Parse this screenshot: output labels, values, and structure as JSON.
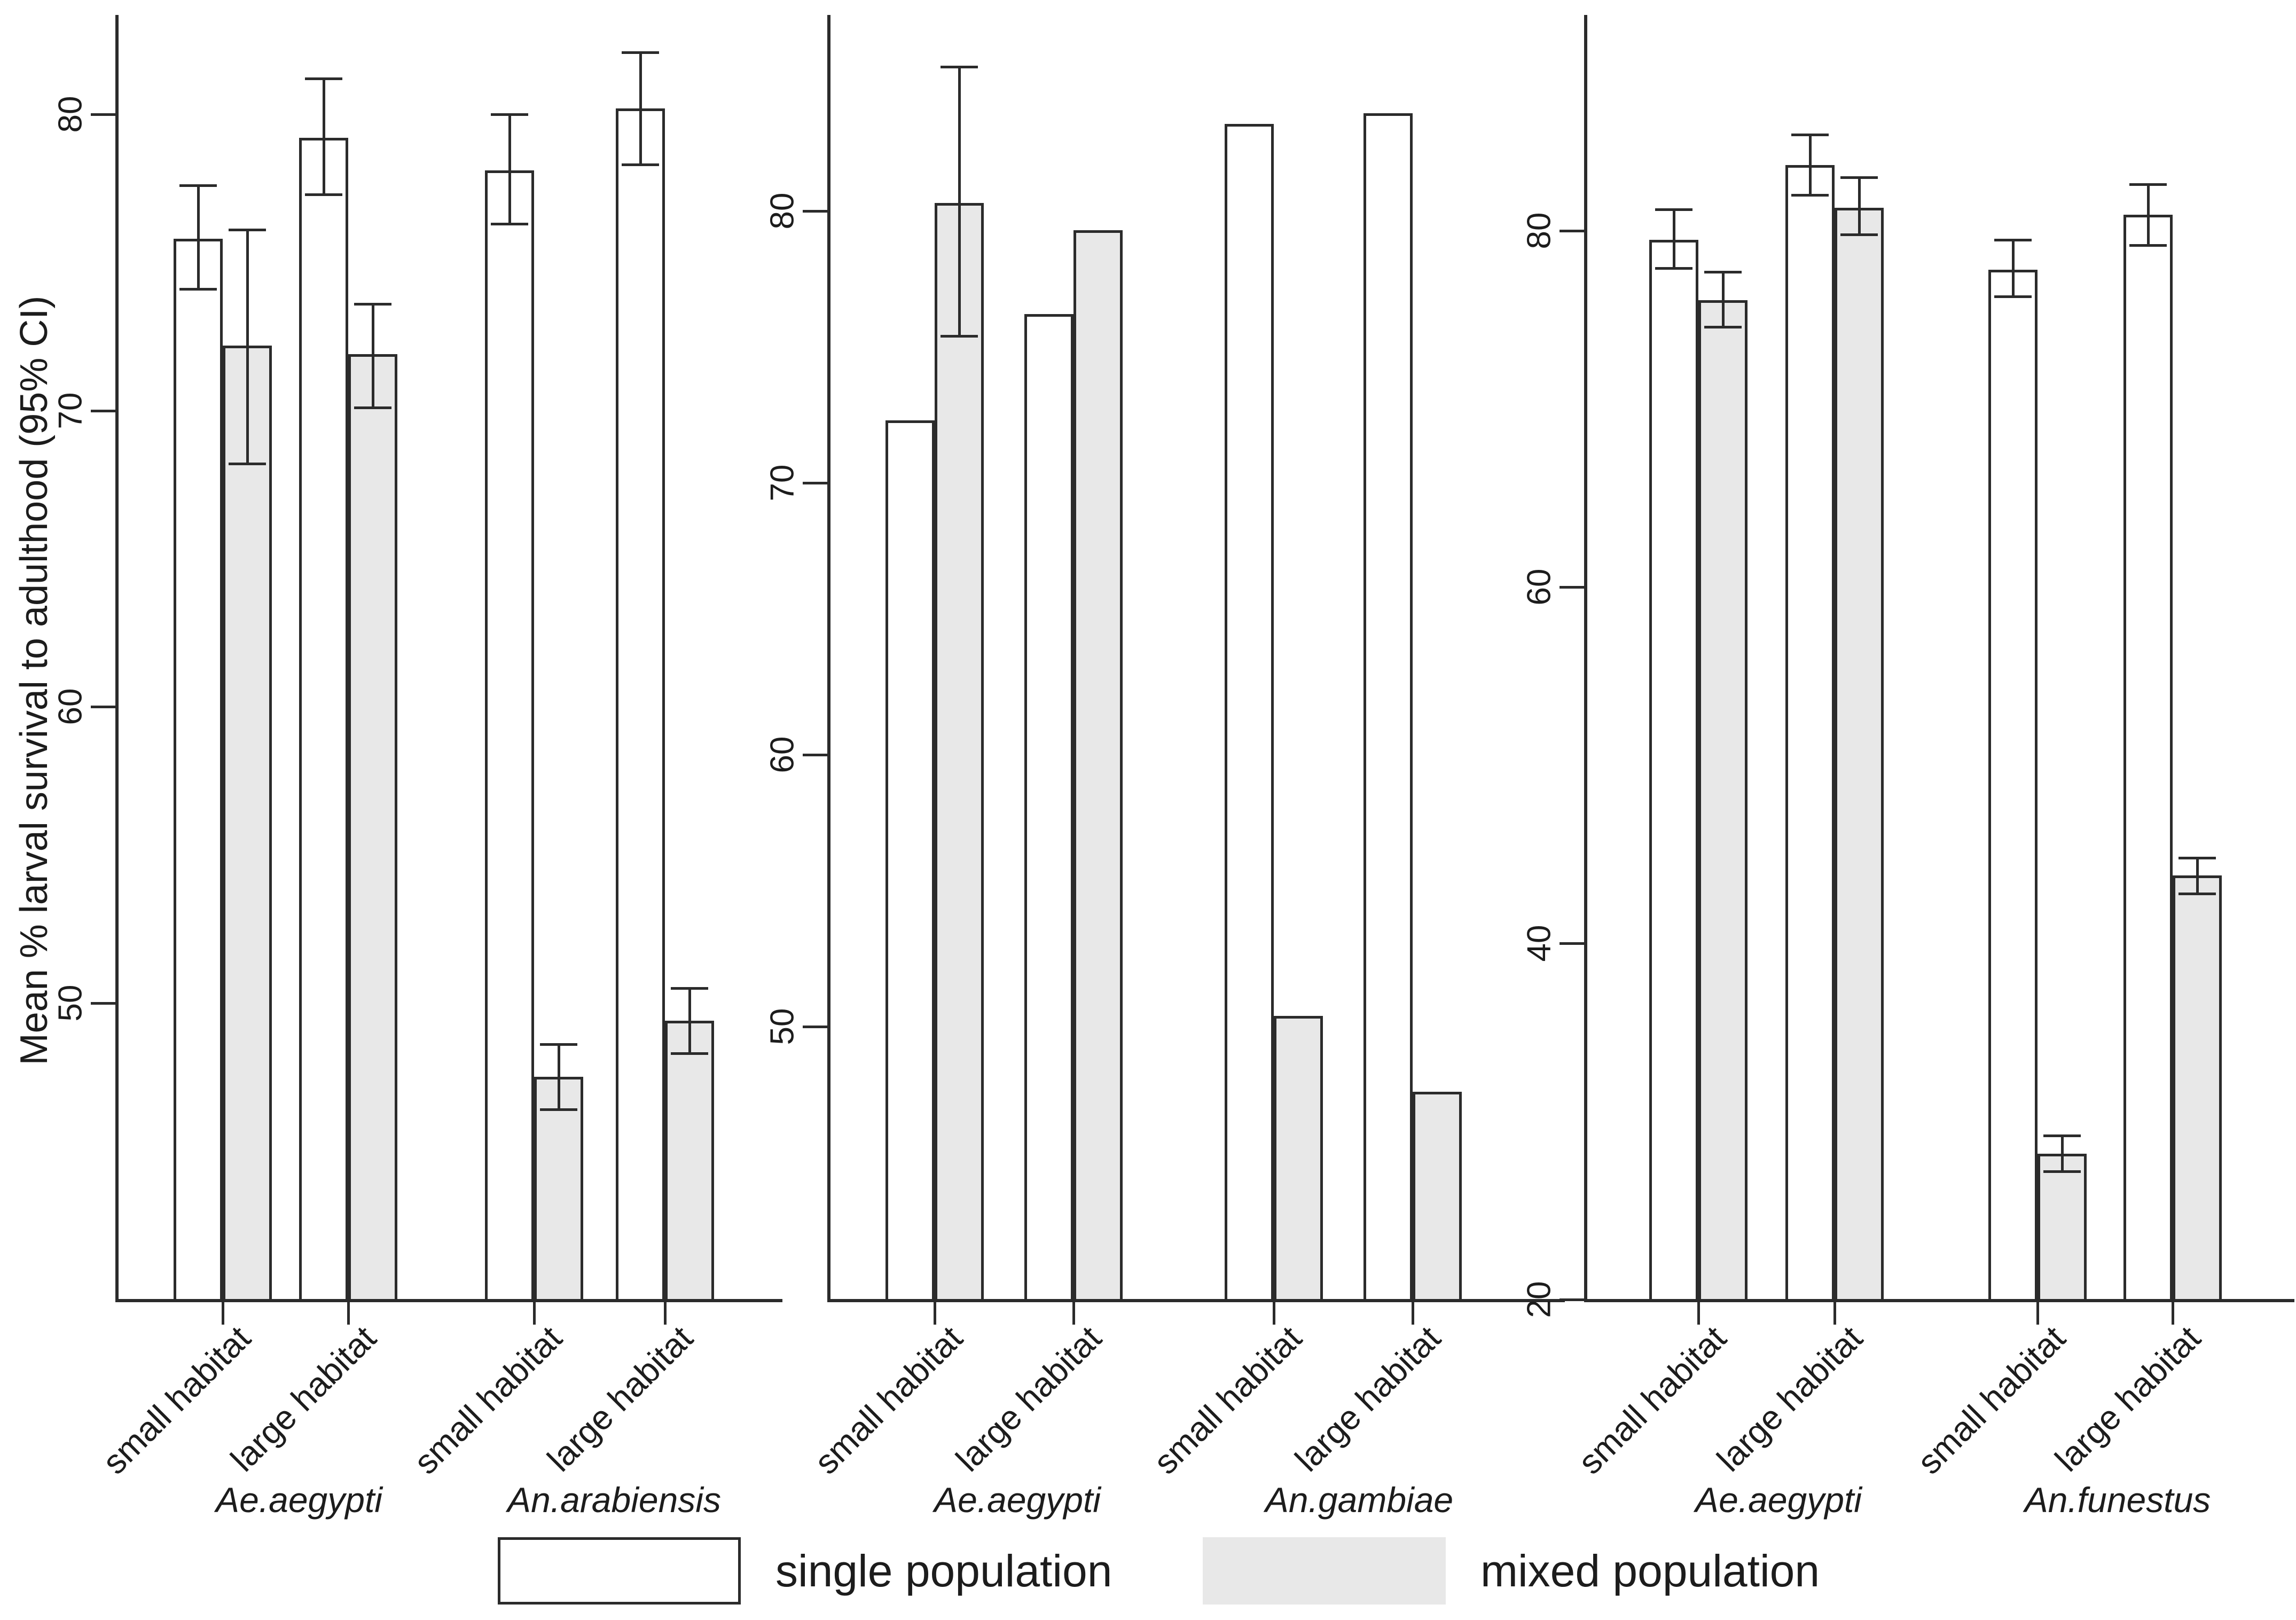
{
  "figure": {
    "y_axis_title": "Mean % larval survival to adulthood (95% CI)",
    "colors": {
      "background": "#ffffff",
      "single_fill": "#ffffff",
      "mixed_fill": "#e8e8e8",
      "stroke": "#2b2b2b"
    },
    "legend": {
      "single_label": "single population",
      "mixed_label": "mixed population"
    }
  },
  "chart_data": [
    {
      "type": "bar",
      "panel": "A",
      "ylabel": "Mean % larval survival to adulthood (95% CI)",
      "y_ticks": [
        80,
        70,
        60,
        50
      ],
      "ylim": [
        40,
        83
      ],
      "legend_position": "bottom",
      "series_names": [
        "single population",
        "mixed population"
      ],
      "species_labels": [
        "Ae.aegypti",
        "An.arabiensis"
      ],
      "groups": [
        {
          "habitat": "small habitat",
          "species": "Ae.aegypti",
          "single": {
            "value": 75.8,
            "ci": [
              74.1,
              77.6
            ]
          },
          "mixed": {
            "value": 72.2,
            "ci": [
              68.2,
              76.1
            ]
          }
        },
        {
          "habitat": "large habitat",
          "species": "Ae.aegypti",
          "single": {
            "value": 79.2,
            "ci": [
              77.3,
              81.2
            ]
          },
          "mixed": {
            "value": 71.9,
            "ci": [
              70.1,
              73.6
            ]
          }
        },
        {
          "habitat": "small habitat",
          "species": "An.arabiensis",
          "single": {
            "value": 78.1,
            "ci": [
              76.3,
              80.0
            ]
          },
          "mixed": {
            "value": 47.5,
            "ci": [
              46.4,
              48.6
            ]
          }
        },
        {
          "habitat": "large habitat",
          "species": "An.arabiensis",
          "single": {
            "value": 80.2,
            "ci": [
              78.3,
              82.1
            ]
          },
          "mixed": {
            "value": 49.4,
            "ci": [
              48.3,
              50.5
            ]
          }
        }
      ]
    },
    {
      "type": "bar",
      "panel": "B",
      "ylabel": "",
      "y_ticks": [
        80,
        70,
        60,
        50
      ],
      "ylim": [
        40,
        86
      ],
      "series_names": [
        "single population",
        "mixed population"
      ],
      "species_labels": [
        "Ae.aegypti",
        "An.gambiae"
      ],
      "groups": [
        {
          "habitat": "small habitat",
          "species": "Ae.aegypti",
          "single": {
            "value": 72.3,
            "ci": null
          },
          "mixed": {
            "value": 80.3,
            "ci": [
              75.4,
              85.3
            ]
          }
        },
        {
          "habitat": "large habitat",
          "species": "Ae.aegypti",
          "single": {
            "value": 76.2,
            "ci": null
          },
          "mixed": {
            "value": 79.3,
            "ci": null
          }
        },
        {
          "habitat": "small habitat",
          "species": "An.gambiae",
          "single": {
            "value": 83.2,
            "ci": null
          },
          "mixed": {
            "value": 50.4,
            "ci": null
          }
        },
        {
          "habitat": "large habitat",
          "species": "An.gambiae",
          "single": {
            "value": 83.6,
            "ci": null
          },
          "mixed": {
            "value": 47.6,
            "ci": null
          }
        }
      ]
    },
    {
      "type": "bar",
      "panel": "C",
      "ylabel": "",
      "y_ticks": [
        80,
        60,
        40,
        20
      ],
      "ylim": [
        20,
        88
      ],
      "series_names": [
        "single population",
        "mixed population"
      ],
      "species_labels": [
        "Ae.aegypti",
        "An.funestus"
      ],
      "groups": [
        {
          "habitat": "small habitat",
          "species": "Ae.aegypti",
          "single": {
            "value": 79.5,
            "ci": [
              77.9,
              81.2
            ]
          },
          "mixed": {
            "value": 76.1,
            "ci": [
              74.6,
              77.7
            ]
          }
        },
        {
          "habitat": "large habitat",
          "species": "Ae.aegypti",
          "single": {
            "value": 83.7,
            "ci": [
              82.0,
              85.4
            ]
          },
          "mixed": {
            "value": 81.3,
            "ci": [
              79.8,
              83.0
            ]
          }
        },
        {
          "habitat": "small habitat",
          "species": "An.funestus",
          "single": {
            "value": 77.8,
            "ci": [
              76.3,
              79.5
            ]
          },
          "mixed": {
            "value": 28.2,
            "ci": [
              27.2,
              29.2
            ]
          }
        },
        {
          "habitat": "large habitat",
          "species": "An.funestus",
          "single": {
            "value": 80.9,
            "ci": [
              79.2,
              82.6
            ]
          },
          "mixed": {
            "value": 43.8,
            "ci": [
              42.8,
              44.8
            ]
          }
        }
      ]
    }
  ]
}
